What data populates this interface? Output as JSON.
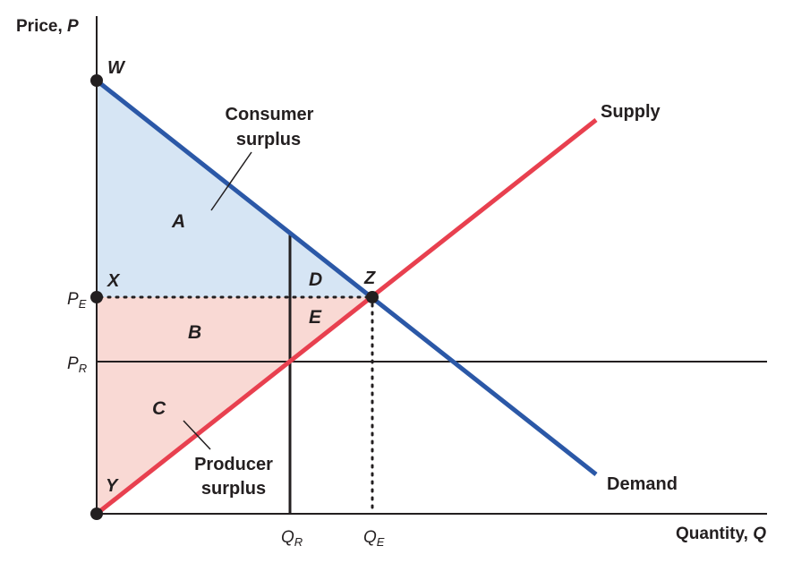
{
  "axes": {
    "y_label": "Price, ",
    "y_symbol": "P",
    "x_label": "Quantity, ",
    "x_symbol": "Q"
  },
  "curves": {
    "supply": "Supply",
    "demand": "Demand"
  },
  "points": {
    "w": "W",
    "x": "X",
    "y": "Y",
    "z": "Z"
  },
  "areas": {
    "a": "A",
    "b": "B",
    "c": "C",
    "d": "D",
    "e": "E"
  },
  "annotations": {
    "consumer_line1": "Consumer",
    "consumer_line2": "surplus",
    "producer_line1": "Producer",
    "producer_line2": "surplus"
  },
  "ticks": {
    "pe_main": "P",
    "pe_sub": "E",
    "pr_main": "P",
    "pr_sub": "R",
    "qr_main": "Q",
    "qr_sub": "R",
    "qe_main": "Q",
    "qe_sub": "E"
  },
  "colors": {
    "demand": "#2b58a7",
    "supply": "#e8404f",
    "consumer_fill": "#d6e5f4",
    "producer_fill": "#f9d9d4",
    "ink": "#231f20"
  }
}
